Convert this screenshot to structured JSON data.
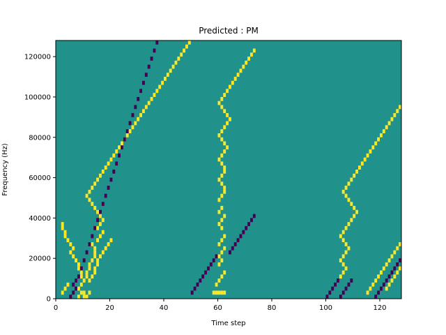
{
  "chart_data": {
    "type": "heatmap",
    "title": "Predicted : PM",
    "xlabel": "Time step",
    "ylabel": "Frequency (Hz)",
    "xlim": [
      0,
      128
    ],
    "ylim": [
      0,
      128000
    ],
    "xticks": [
      0,
      20,
      40,
      60,
      80,
      100,
      120
    ],
    "yticks": [
      0,
      20000,
      40000,
      60000,
      80000,
      100000,
      120000
    ],
    "n_time_steps": 128,
    "n_freq_bins": 64,
    "freq_bin_hz": 2000,
    "colormap": "viridis",
    "grid": false,
    "legend": "none",
    "colors": {
      "background_value": "#21918c",
      "high_value": "#fde725",
      "low_value": "#440154"
    },
    "high_cells": [
      [
        2,
        1
      ],
      [
        3,
        2
      ],
      [
        4,
        3
      ],
      [
        8,
        0
      ],
      [
        8,
        2
      ],
      [
        9,
        1
      ],
      [
        9,
        3
      ],
      [
        10,
        0
      ],
      [
        10,
        1
      ],
      [
        11,
        0
      ],
      [
        12,
        1
      ],
      [
        12,
        4
      ],
      [
        13,
        5
      ],
      [
        14,
        6
      ],
      [
        14,
        7
      ],
      [
        15,
        8
      ],
      [
        15,
        9
      ],
      [
        16,
        10
      ],
      [
        17,
        11
      ],
      [
        18,
        12
      ],
      [
        19,
        13
      ],
      [
        20,
        14
      ],
      [
        15,
        14
      ],
      [
        16,
        15
      ],
      [
        17,
        16
      ],
      [
        13,
        13
      ],
      [
        14,
        12
      ],
      [
        14,
        11
      ],
      [
        14,
        10
      ],
      [
        13,
        9
      ],
      [
        12,
        8
      ],
      [
        12,
        7
      ],
      [
        11,
        6
      ],
      [
        11,
        5
      ],
      [
        10,
        4
      ],
      [
        9,
        5
      ],
      [
        9,
        6
      ],
      [
        8,
        7
      ],
      [
        8,
        8
      ],
      [
        7,
        9
      ],
      [
        6,
        10
      ],
      [
        5,
        11
      ],
      [
        6,
        12
      ],
      [
        5,
        13
      ],
      [
        4,
        14
      ],
      [
        3,
        15
      ],
      [
        3,
        16
      ],
      [
        2,
        17
      ],
      [
        2,
        18
      ],
      [
        15,
        17
      ],
      [
        16,
        18
      ],
      [
        17,
        19
      ],
      [
        16,
        20
      ],
      [
        15,
        21
      ],
      [
        14,
        22
      ],
      [
        13,
        23
      ],
      [
        12,
        24
      ],
      [
        11,
        25
      ],
      [
        12,
        26
      ],
      [
        13,
        27
      ],
      [
        14,
        28
      ],
      [
        15,
        29
      ],
      [
        16,
        30
      ],
      [
        17,
        31
      ],
      [
        18,
        32
      ],
      [
        19,
        33
      ],
      [
        20,
        34
      ],
      [
        21,
        35
      ],
      [
        22,
        36
      ],
      [
        23,
        37
      ],
      [
        24,
        38
      ],
      [
        25,
        39
      ],
      [
        26,
        40
      ],
      [
        27,
        41
      ],
      [
        28,
        42
      ],
      [
        29,
        43
      ],
      [
        30,
        44
      ],
      [
        31,
        45
      ],
      [
        32,
        46
      ],
      [
        33,
        47
      ],
      [
        34,
        48
      ],
      [
        35,
        49
      ],
      [
        36,
        50
      ],
      [
        37,
        51
      ],
      [
        38,
        52
      ],
      [
        39,
        53
      ],
      [
        40,
        54
      ],
      [
        41,
        55
      ],
      [
        42,
        56
      ],
      [
        43,
        57
      ],
      [
        44,
        58
      ],
      [
        45,
        59
      ],
      [
        46,
        60
      ],
      [
        47,
        61
      ],
      [
        48,
        62
      ],
      [
        49,
        63
      ],
      [
        58,
        1
      ],
      [
        59,
        1
      ],
      [
        60,
        1
      ],
      [
        61,
        1
      ],
      [
        62,
        1
      ],
      [
        59,
        3
      ],
      [
        60,
        4
      ],
      [
        61,
        5
      ],
      [
        62,
        6
      ],
      [
        60,
        8
      ],
      [
        61,
        9
      ],
      [
        60,
        10
      ],
      [
        61,
        11
      ],
      [
        62,
        12
      ],
      [
        60,
        13
      ],
      [
        61,
        14
      ],
      [
        62,
        15
      ],
      [
        61,
        17
      ],
      [
        60,
        18
      ],
      [
        61,
        19
      ],
      [
        62,
        20
      ],
      [
        60,
        21
      ],
      [
        61,
        22
      ],
      [
        60,
        24
      ],
      [
        61,
        25
      ],
      [
        62,
        26
      ],
      [
        62,
        27
      ],
      [
        61,
        28
      ],
      [
        60,
        29
      ],
      [
        61,
        30
      ],
      [
        62,
        31
      ],
      [
        62,
        32
      ],
      [
        61,
        33
      ],
      [
        60,
        34
      ],
      [
        61,
        35
      ],
      [
        62,
        36
      ],
      [
        63,
        37
      ],
      [
        62,
        38
      ],
      [
        61,
        39
      ],
      [
        60,
        40
      ],
      [
        61,
        41
      ],
      [
        62,
        42
      ],
      [
        63,
        43
      ],
      [
        64,
        44
      ],
      [
        63,
        45
      ],
      [
        62,
        46
      ],
      [
        61,
        47
      ],
      [
        60,
        48
      ],
      [
        61,
        49
      ],
      [
        62,
        50
      ],
      [
        63,
        51
      ],
      [
        64,
        52
      ],
      [
        65,
        53
      ],
      [
        66,
        54
      ],
      [
        67,
        55
      ],
      [
        68,
        56
      ],
      [
        69,
        57
      ],
      [
        70,
        58
      ],
      [
        71,
        59
      ],
      [
        72,
        60
      ],
      [
        73,
        61
      ],
      [
        105,
        5
      ],
      [
        106,
        6
      ],
      [
        107,
        7
      ],
      [
        106,
        8
      ],
      [
        105,
        9
      ],
      [
        106,
        10
      ],
      [
        107,
        11
      ],
      [
        108,
        12
      ],
      [
        107,
        13
      ],
      [
        106,
        14
      ],
      [
        105,
        15
      ],
      [
        106,
        16
      ],
      [
        107,
        17
      ],
      [
        108,
        18
      ],
      [
        109,
        19
      ],
      [
        110,
        20
      ],
      [
        111,
        21
      ],
      [
        110,
        22
      ],
      [
        109,
        23
      ],
      [
        108,
        24
      ],
      [
        107,
        25
      ],
      [
        106,
        26
      ],
      [
        107,
        27
      ],
      [
        108,
        28
      ],
      [
        109,
        29
      ],
      [
        110,
        30
      ],
      [
        111,
        31
      ],
      [
        112,
        32
      ],
      [
        113,
        33
      ],
      [
        114,
        34
      ],
      [
        115,
        35
      ],
      [
        116,
        36
      ],
      [
        117,
        37
      ],
      [
        118,
        38
      ],
      [
        119,
        39
      ],
      [
        120,
        40
      ],
      [
        121,
        41
      ],
      [
        122,
        42
      ],
      [
        123,
        43
      ],
      [
        124,
        44
      ],
      [
        125,
        45
      ],
      [
        126,
        46
      ],
      [
        127,
        47
      ],
      [
        115,
        1
      ],
      [
        116,
        2
      ],
      [
        117,
        3
      ],
      [
        118,
        4
      ],
      [
        119,
        5
      ],
      [
        120,
        6
      ],
      [
        121,
        7
      ],
      [
        122,
        8
      ],
      [
        123,
        9
      ],
      [
        124,
        10
      ],
      [
        125,
        11
      ],
      [
        126,
        12
      ],
      [
        127,
        13
      ],
      [
        122,
        2
      ],
      [
        123,
        3
      ],
      [
        124,
        4
      ],
      [
        125,
        5
      ],
      [
        126,
        6
      ],
      [
        127,
        7
      ]
    ],
    "low_cells": [
      [
        5,
        0
      ],
      [
        6,
        1
      ],
      [
        7,
        2
      ],
      [
        6,
        3
      ],
      [
        7,
        4
      ],
      [
        8,
        5
      ],
      [
        9,
        7
      ],
      [
        10,
        9
      ],
      [
        11,
        11
      ],
      [
        12,
        13
      ],
      [
        13,
        15
      ],
      [
        14,
        17
      ],
      [
        15,
        19
      ],
      [
        16,
        21
      ],
      [
        17,
        23
      ],
      [
        18,
        25
      ],
      [
        19,
        27
      ],
      [
        20,
        29
      ],
      [
        21,
        31
      ],
      [
        22,
        33
      ],
      [
        23,
        35
      ],
      [
        24,
        37
      ],
      [
        25,
        39
      ],
      [
        26,
        41
      ],
      [
        27,
        43
      ],
      [
        28,
        45
      ],
      [
        29,
        47
      ],
      [
        30,
        49
      ],
      [
        31,
        51
      ],
      [
        32,
        53
      ],
      [
        33,
        55
      ],
      [
        34,
        57
      ],
      [
        35,
        59
      ],
      [
        36,
        61
      ],
      [
        37,
        63
      ],
      [
        50,
        1
      ],
      [
        51,
        2
      ],
      [
        52,
        3
      ],
      [
        53,
        4
      ],
      [
        54,
        5
      ],
      [
        55,
        6
      ],
      [
        56,
        7
      ],
      [
        57,
        8
      ],
      [
        58,
        9
      ],
      [
        59,
        10
      ],
      [
        64,
        11
      ],
      [
        65,
        12
      ],
      [
        66,
        13
      ],
      [
        67,
        14
      ],
      [
        68,
        15
      ],
      [
        69,
        16
      ],
      [
        70,
        17
      ],
      [
        71,
        18
      ],
      [
        72,
        19
      ],
      [
        73,
        20
      ],
      [
        100,
        0
      ],
      [
        101,
        1
      ],
      [
        102,
        2
      ],
      [
        103,
        3
      ],
      [
        104,
        4
      ],
      [
        105,
        0
      ],
      [
        106,
        1
      ],
      [
        107,
        2
      ],
      [
        108,
        3
      ],
      [
        109,
        4
      ],
      [
        118,
        0
      ],
      [
        119,
        1
      ],
      [
        120,
        2
      ],
      [
        121,
        3
      ],
      [
        122,
        4
      ],
      [
        123,
        5
      ],
      [
        124,
        6
      ],
      [
        125,
        7
      ],
      [
        126,
        8
      ],
      [
        127,
        9
      ]
    ]
  }
}
